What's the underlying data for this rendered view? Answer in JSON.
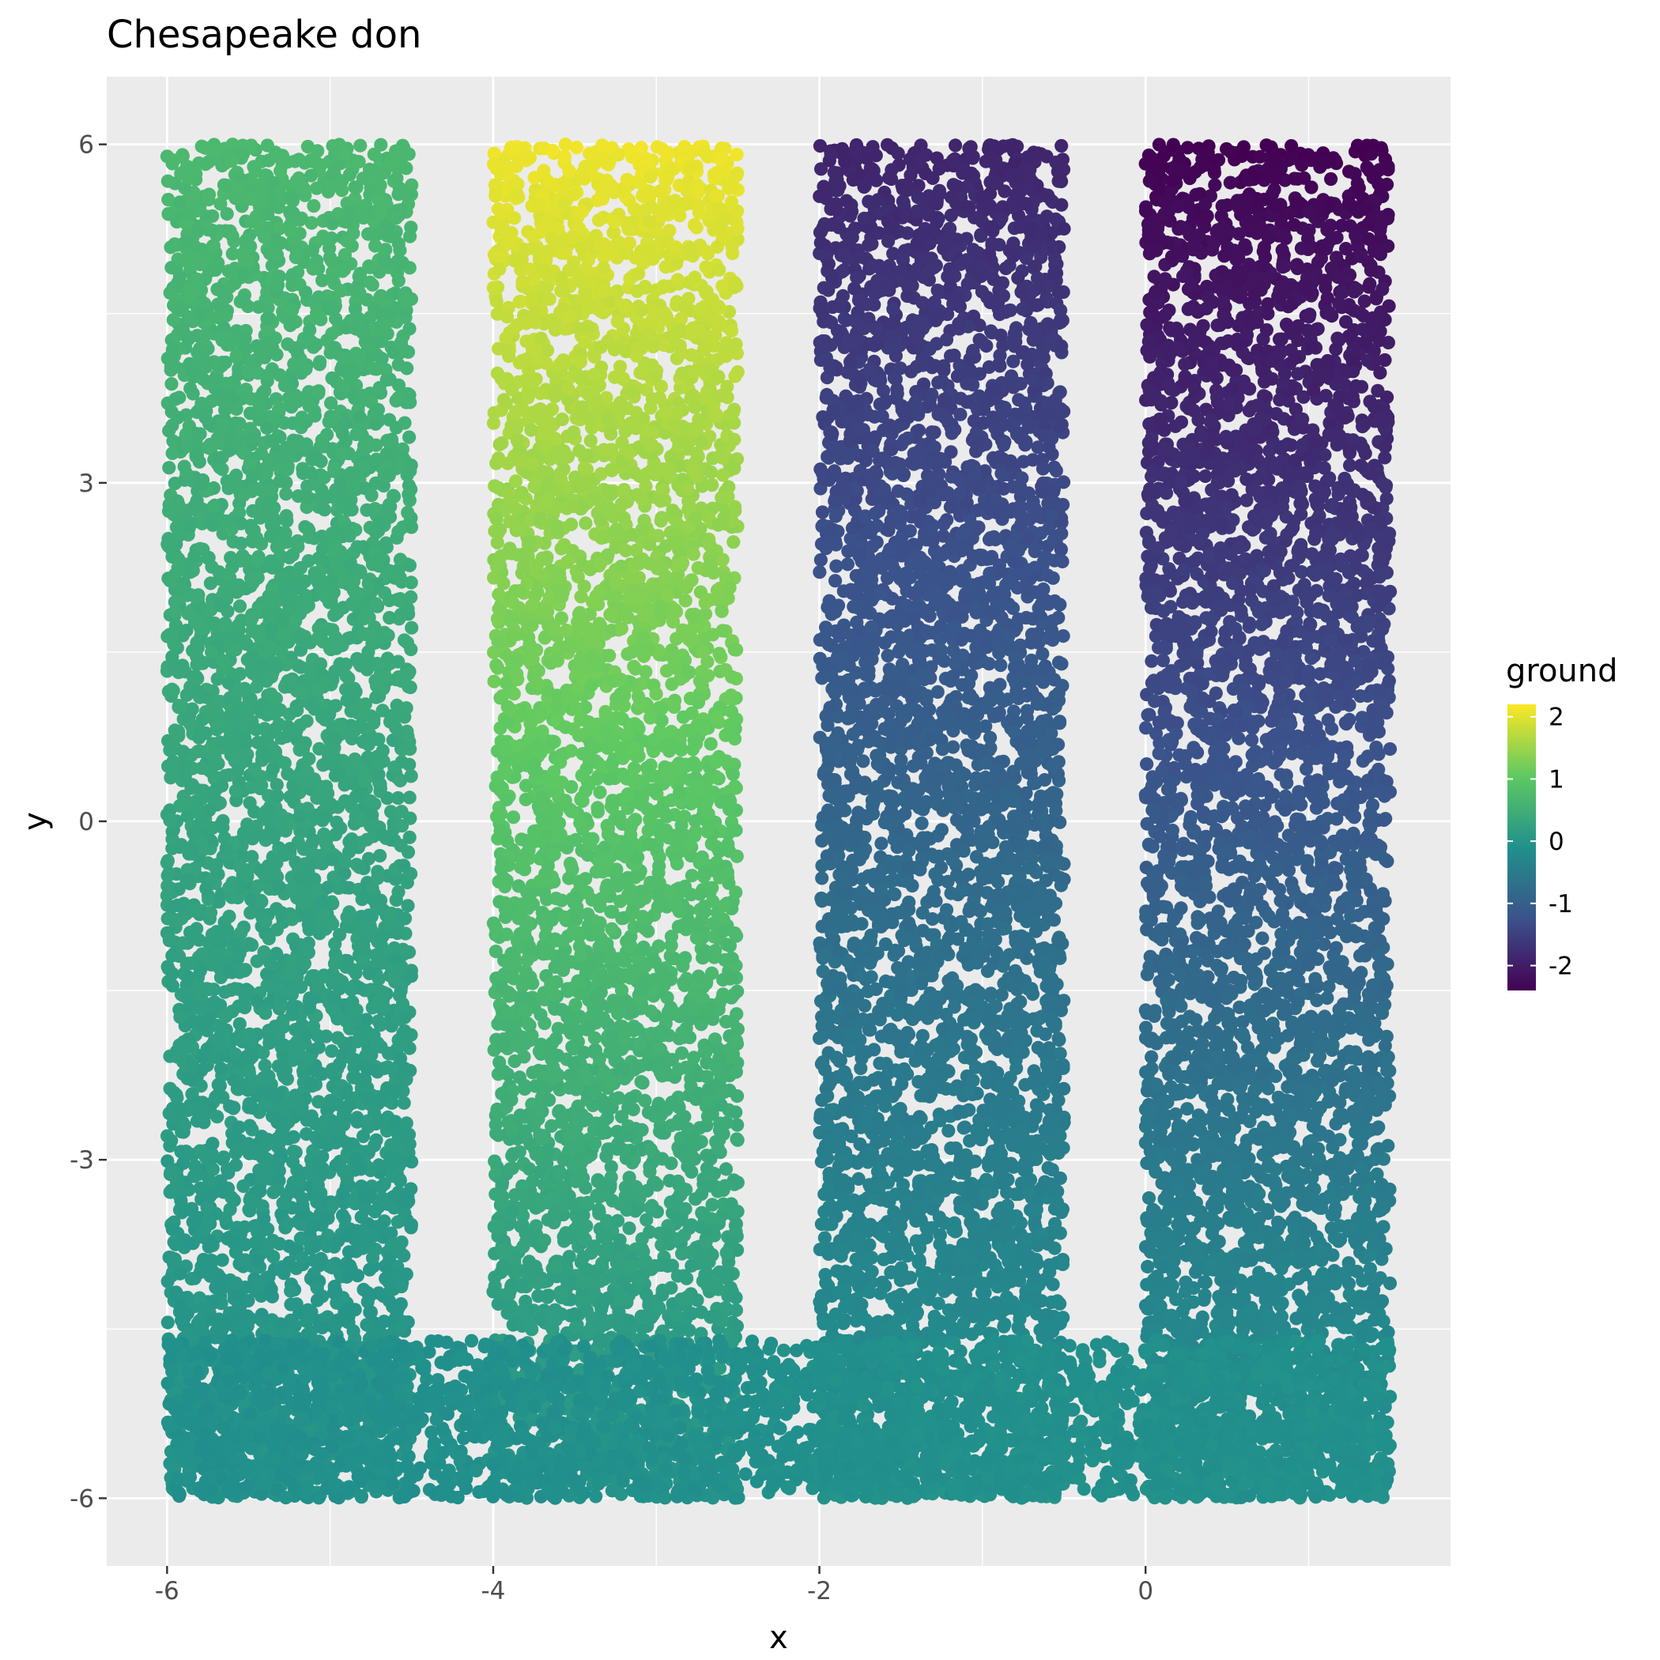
{
  "chart_data": {
    "type": "scatter",
    "title": "Chesapeake don",
    "xlabel": "x",
    "ylabel": "y",
    "xlim": [
      -6.37,
      1.87
    ],
    "ylim": [
      -6.6,
      6.6
    ],
    "x_ticks": [
      -6,
      -4,
      -2,
      0
    ],
    "x_tick_labels": [
      "-6",
      "-4",
      "-2",
      "0"
    ],
    "y_ticks": [
      -6,
      -3,
      0,
      3,
      6
    ],
    "y_tick_labels": [
      "-6",
      "-3",
      "0",
      "3",
      "6"
    ],
    "grid": true,
    "legend": {
      "title": "ground",
      "position": "right",
      "range": [
        -2.4,
        2.2
      ],
      "ticks": [
        2,
        1,
        0,
        -1,
        -2
      ],
      "tick_labels": [
        "2",
        "1",
        "0",
        "-1",
        "-2"
      ]
    },
    "colormap": [
      "#440154",
      "#3b528b",
      "#21908c",
      "#5ec962",
      "#fde725"
    ],
    "point_count_estimate": 20000,
    "regions": [
      {
        "shape": "column",
        "x_range": [
          -6.0,
          -4.5
        ],
        "y_range": [
          -6.0,
          6.0
        ],
        "ground_top": 0.7,
        "ground_bottom": -0.05
      },
      {
        "shape": "column",
        "x_range": [
          -4.0,
          -2.5
        ],
        "y_range": [
          -6.0,
          6.0
        ],
        "ground_top": 2.1,
        "ground_bottom": -0.05
      },
      {
        "shape": "column",
        "x_range": [
          -2.0,
          -0.5
        ],
        "y_range": [
          -6.0,
          6.0
        ],
        "ground_top": -1.9,
        "ground_bottom": -0.05
      },
      {
        "shape": "column",
        "x_range": [
          0.0,
          1.5
        ],
        "y_range": [
          -6.0,
          6.0
        ],
        "ground_top": -2.4,
        "ground_bottom": -0.05
      },
      {
        "shape": "base",
        "x_range": [
          -6.0,
          1.5
        ],
        "y_range": [
          -6.0,
          -4.6
        ],
        "ground": -0.1
      }
    ]
  }
}
